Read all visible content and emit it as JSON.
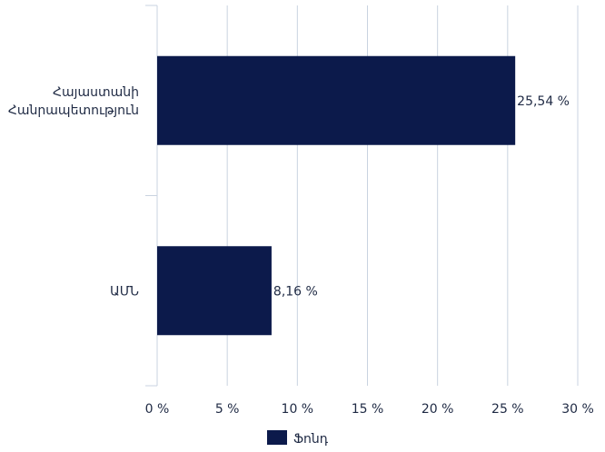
{
  "chart_data": {
    "type": "bar",
    "orientation": "horizontal",
    "categories": [
      "Հայաստանի Հանրապետություն",
      "ԱՄՆ"
    ],
    "series": [
      {
        "name": "Ֆոնդ",
        "values": [
          25.54,
          8.16
        ],
        "color": "#0c1a4b"
      }
    ],
    "data_labels": [
      "25,54 %",
      "8,16 %"
    ],
    "xlim": [
      0,
      30
    ],
    "x_ticks": [
      0,
      5,
      10,
      15,
      20,
      25,
      30
    ],
    "x_tick_labels": [
      "0 %",
      "5 %",
      "10 %",
      "15 %",
      "20 %",
      "25 %",
      "30 %"
    ],
    "grid": "vertical",
    "gridline_color": "#c9d3e0",
    "legend_position": "bottom"
  }
}
